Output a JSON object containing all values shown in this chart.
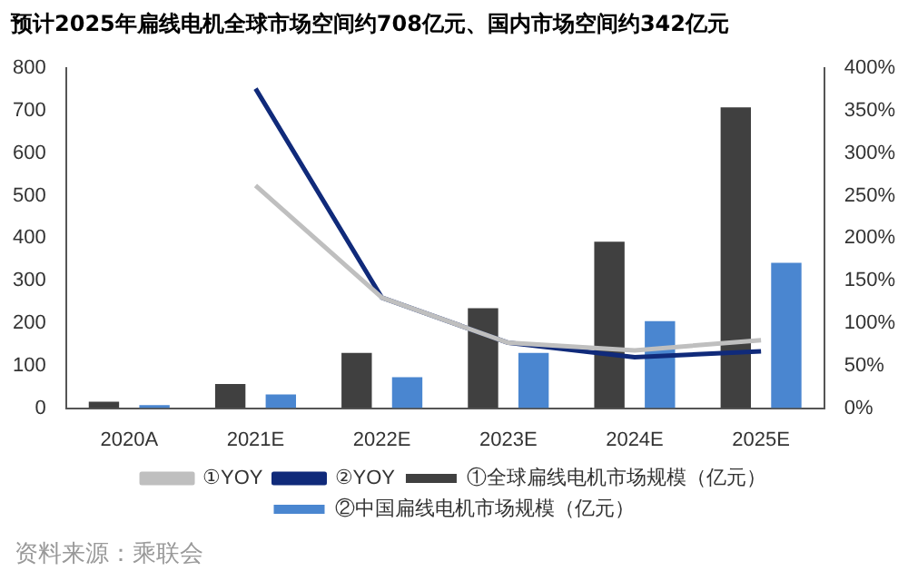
{
  "chart_data": {
    "type": "bar",
    "title": "预计2025年扁线电机全球市场空间约708亿元、国内市场空间约342亿元",
    "categories": [
      "2020A",
      "2021E",
      "2022E",
      "2023E",
      "2024E",
      "2025E"
    ],
    "series": [
      {
        "name": "①全球扁线电机市场规模（亿元）",
        "color": "#404040",
        "values": [
          15,
          57,
          130,
          235,
          392,
          708
        ]
      },
      {
        "name": "②中国扁线电机市场规模（亿元）",
        "color": "#4a86d0",
        "values": [
          7,
          32,
          73,
          130,
          205,
          342
        ]
      },
      {
        "name": "①YOY",
        "type": "line",
        "axis": "y2",
        "color": "#bfbfbf",
        "values": [
          null,
          262,
          130,
          77,
          68,
          80
        ]
      },
      {
        "name": "②YOY",
        "type": "line",
        "axis": "y2",
        "color": "#102a7a",
        "values": [
          null,
          376,
          130,
          77,
          60,
          67
        ]
      }
    ],
    "ylim": [
      0,
      800
    ],
    "yticks": [
      0,
      100,
      200,
      300,
      400,
      500,
      600,
      700,
      800
    ],
    "y2lim": [
      0,
      400
    ],
    "y2ticks": [
      {
        "value": 0,
        "label": "0%"
      },
      {
        "value": 50,
        "label": "50%"
      },
      {
        "value": 100,
        "label": "100%"
      },
      {
        "value": 150,
        "label": "150%"
      },
      {
        "value": 200,
        "label": "200%"
      },
      {
        "value": 250,
        "label": "250%"
      },
      {
        "value": 300,
        "label": "300%"
      },
      {
        "value": 350,
        "label": "350%"
      },
      {
        "value": 400,
        "label": "400%"
      }
    ],
    "grid": false,
    "legend": "bottom",
    "marker": "none",
    "annotations": [
      "资料来源：乘联会"
    ]
  }
}
